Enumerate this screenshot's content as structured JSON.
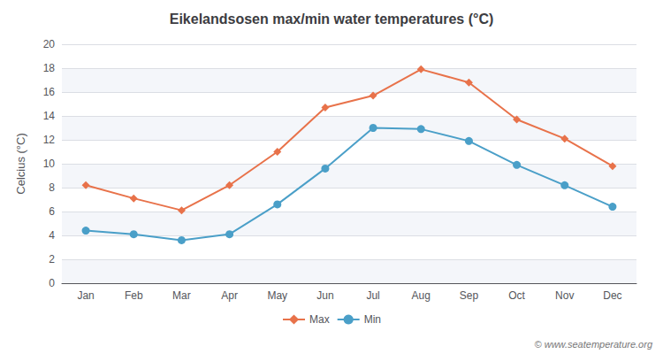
{
  "chart_data": {
    "type": "line",
    "title": "Eikelandsosen max/min water temperatures (°C)",
    "categories": [
      "Jan",
      "Feb",
      "Mar",
      "Apr",
      "May",
      "Jun",
      "Jul",
      "Aug",
      "Sep",
      "Oct",
      "Nov",
      "Dec"
    ],
    "series": [
      {
        "name": "Max",
        "color": "#e8724a",
        "marker": "diamond",
        "values": [
          8.2,
          7.1,
          6.1,
          8.2,
          11.0,
          14.7,
          15.7,
          17.9,
          16.8,
          13.7,
          12.1,
          9.8
        ]
      },
      {
        "name": "Min",
        "color": "#4a9fc8",
        "marker": "circle",
        "values": [
          4.4,
          4.1,
          3.6,
          4.1,
          6.6,
          9.6,
          13.0,
          12.9,
          11.9,
          9.9,
          8.2,
          6.4
        ]
      }
    ],
    "ylabel": "Celcius (°C)",
    "ylim": [
      0,
      20
    ],
    "yticks": [
      0,
      2,
      4,
      6,
      8,
      10,
      12,
      14,
      16,
      18,
      20
    ],
    "grid": true,
    "legend": "bottom",
    "annotations": [
      "© www.seatemperature.org"
    ]
  }
}
